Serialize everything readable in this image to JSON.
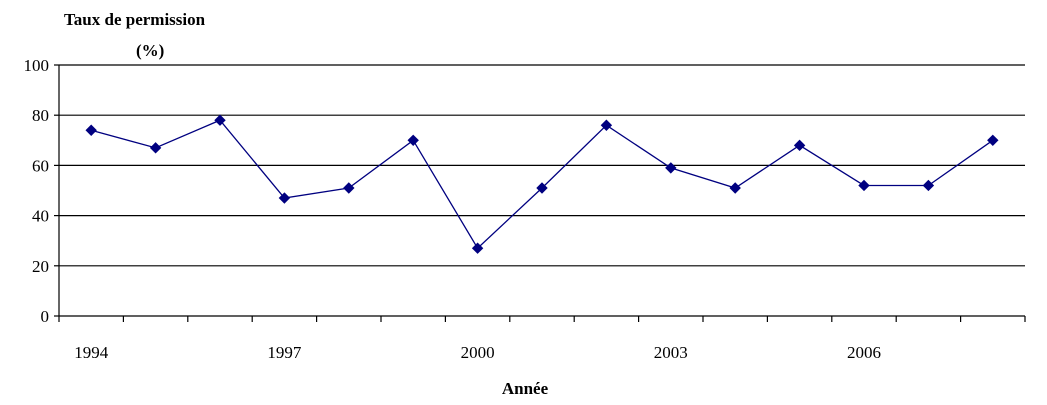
{
  "chart_data": {
    "type": "line",
    "ylabel_line1": "Taux de permission",
    "ylabel_line2": "(%)",
    "xlabel": "Année",
    "ylim": [
      0,
      100
    ],
    "yticks": [
      0,
      20,
      40,
      60,
      80,
      100
    ],
    "xticks_labeled": [
      "1994",
      "1997",
      "2000",
      "2003",
      "2006"
    ],
    "grid": true,
    "legend": "none",
    "colors": {
      "series": "#000080",
      "grid": "#000000",
      "axis": "#000000"
    },
    "series": [
      {
        "x": [
          1994,
          1995,
          1996,
          1997,
          1998,
          1999,
          2000,
          2001,
          2002,
          2003,
          2004,
          2005,
          2006,
          2007,
          2008
        ],
        "values": [
          74,
          67,
          78,
          47,
          51,
          70,
          27,
          51,
          76,
          59,
          51,
          68,
          52,
          52,
          70
        ]
      }
    ]
  }
}
